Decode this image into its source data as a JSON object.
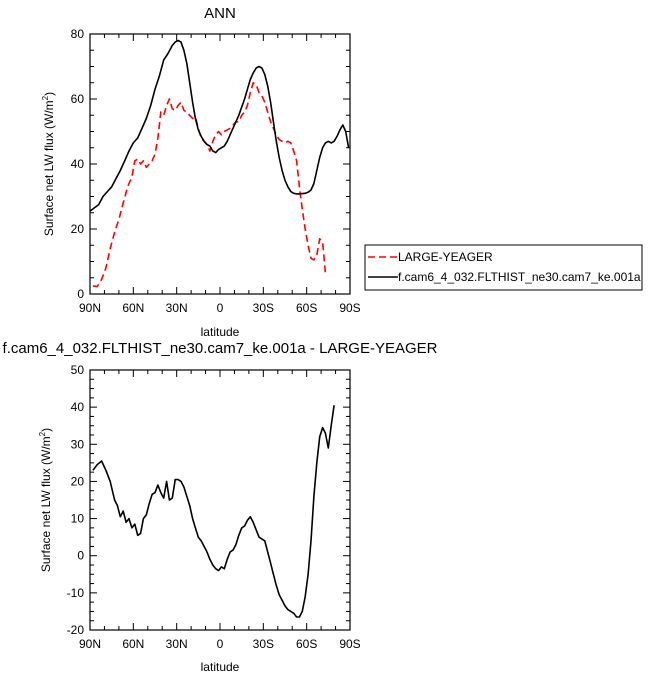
{
  "chart_data": [
    {
      "type": "line",
      "title": "ANN",
      "xlabel": "latitude",
      "ylabel_main": "Surface net LW flux (W/m",
      "ylabel_sup": "2",
      "ylabel_close": ")",
      "xlim": [
        90,
        -90
      ],
      "ylim": [
        0,
        80
      ],
      "xticks": [
        {
          "value": 90,
          "label": "90N"
        },
        {
          "value": 60,
          "label": "60N"
        },
        {
          "value": 30,
          "label": "30N"
        },
        {
          "value": 0,
          "label": "0"
        },
        {
          "value": -30,
          "label": "30S"
        },
        {
          "value": -60,
          "label": "60S"
        },
        {
          "value": -90,
          "label": "90S"
        }
      ],
      "yticks": [
        0,
        20,
        40,
        60,
        80
      ],
      "legend_position": "right",
      "series": [
        {
          "name": "LARGE-YEAGER",
          "color": "#ff0000",
          "dash": "dashed",
          "x": [
            88,
            85,
            82,
            79,
            76,
            73,
            70,
            67,
            64,
            61,
            59,
            57,
            55,
            53,
            51,
            49,
            47,
            45,
            43,
            41,
            39,
            37,
            35,
            33,
            31,
            29,
            27,
            25,
            23,
            21,
            19,
            17,
            15,
            13,
            11,
            9,
            7,
            5,
            3,
            1,
            -1,
            -3,
            -5,
            -7,
            -9,
            -11,
            -13,
            -15,
            -17,
            -19,
            -21,
            -23,
            -25,
            -27,
            -29,
            -31,
            -33,
            -35,
            -37,
            -39,
            -41,
            -43,
            -45,
            -47,
            -49,
            -51,
            -53,
            -55,
            -57,
            -59,
            -61,
            -63,
            -65,
            -67,
            -69,
            -71,
            -73,
            -75,
            -77,
            -79,
            -81
          ],
          "y": [
            2.5,
            2.3,
            4.5,
            8,
            14,
            19,
            23,
            28,
            33,
            36,
            41,
            41.5,
            40,
            41,
            39,
            40,
            41,
            43,
            48,
            56,
            55,
            58,
            60,
            57,
            56.5,
            58,
            59,
            56.5,
            56,
            55,
            54,
            54.5,
            51,
            48,
            47,
            46,
            44,
            47,
            49,
            50,
            49,
            50,
            50.5,
            51,
            52,
            53,
            53,
            55,
            56,
            58,
            62,
            65,
            64.5,
            62,
            61,
            59,
            56,
            53,
            51,
            49,
            47.5,
            47,
            46.5,
            47,
            46.5,
            44,
            41,
            33,
            26,
            20,
            15,
            11,
            10.5,
            12,
            17,
            16,
            6.5,
            null,
            null,
            null,
            null
          ]
        },
        {
          "name": "f.cam6_4_032.FLTHIST_ne30.cam7_ke.001a",
          "color": "#000000",
          "dash": "solid",
          "x": [
            90,
            87,
            84,
            81,
            78,
            75,
            72,
            69,
            66,
            63,
            60,
            57,
            54,
            51,
            48,
            45,
            42,
            39,
            36,
            33,
            31,
            29,
            27,
            25,
            23,
            21,
            19,
            17,
            15,
            13,
            11,
            9,
            7,
            5,
            3,
            1,
            -1,
            -3,
            -5,
            -7,
            -9,
            -11,
            -13,
            -15,
            -17,
            -19,
            -21,
            -23,
            -25,
            -27,
            -29,
            -31,
            -33,
            -35,
            -37,
            -39,
            -41,
            -43,
            -45,
            -47,
            -49,
            -51,
            -53,
            -55,
            -57,
            -59,
            -61,
            -63,
            -65,
            -67,
            -69,
            -71,
            -73,
            -75,
            -77,
            -79,
            -81,
            -83,
            -85,
            -87,
            -89
          ],
          "y": [
            25.5,
            26.5,
            27.5,
            30,
            31.5,
            33,
            35.5,
            38,
            41,
            44,
            46.5,
            48,
            51,
            54,
            58,
            63,
            67,
            72,
            74,
            76.5,
            77.5,
            78,
            77.5,
            75,
            71,
            65,
            59,
            54,
            50.5,
            48.5,
            47,
            46,
            45.5,
            44,
            43.5,
            44.5,
            45,
            45.5,
            47,
            49,
            51,
            53,
            55,
            57.5,
            60,
            63,
            66,
            68,
            69.5,
            70,
            69.5,
            67.5,
            64,
            59,
            53,
            47,
            42,
            38,
            35,
            33,
            31.5,
            31,
            30.8,
            30.8,
            30.9,
            31,
            31.3,
            32,
            34,
            38,
            42,
            45,
            46.5,
            47,
            46.5,
            47,
            48.5,
            50.5,
            52,
            50,
            45
          ]
        }
      ]
    },
    {
      "type": "line",
      "title": "f.cam6_4_032.FLTHIST_ne30.cam7_ke.001a - LARGE-YEAGER",
      "xlabel": "latitude",
      "ylabel_main": "Surface net LW flux (W/m",
      "ylabel_sup": "2",
      "ylabel_close": ")",
      "xlim": [
        90,
        -90
      ],
      "ylim": [
        -20,
        50
      ],
      "xticks": [
        {
          "value": 90,
          "label": "90N"
        },
        {
          "value": 60,
          "label": "60N"
        },
        {
          "value": 30,
          "label": "30N"
        },
        {
          "value": 0,
          "label": "0"
        },
        {
          "value": -30,
          "label": "30S"
        },
        {
          "value": -60,
          "label": "60S"
        },
        {
          "value": -90,
          "label": "90S"
        }
      ],
      "yticks": [
        -20,
        -10,
        0,
        10,
        20,
        30,
        40,
        50
      ],
      "series": [
        {
          "color": "#000000",
          "dash": "solid",
          "x": [
            88,
            85,
            82,
            79,
            76,
            73,
            71,
            69,
            67,
            65,
            63,
            61,
            59,
            57,
            55,
            53,
            51,
            49,
            47,
            45,
            43,
            41,
            39,
            37,
            35,
            33,
            31,
            29,
            27,
            25,
            23,
            21,
            19,
            17,
            15,
            13,
            11,
            9,
            7,
            5,
            3,
            1,
            -1,
            -3,
            -5,
            -7,
            -9,
            -11,
            -13,
            -15,
            -17,
            -19,
            -21,
            -23,
            -25,
            -27,
            -29,
            -31,
            -33,
            -35,
            -37,
            -39,
            -41,
            -43,
            -45,
            -47,
            -49,
            -51,
            -53,
            -55,
            -57,
            -59,
            -61,
            -63,
            -65,
            -67,
            -69,
            -71,
            -73,
            -75,
            -77,
            -79,
            -81
          ],
          "y": [
            23,
            24.5,
            25.5,
            23,
            20,
            15,
            13.5,
            10.5,
            12,
            9,
            10,
            7.5,
            8.5,
            5.5,
            6,
            10,
            11,
            14,
            16.5,
            17,
            19,
            17,
            15.5,
            20,
            15,
            15.5,
            20.5,
            20.5,
            20,
            18.5,
            16,
            13.5,
            10,
            7.5,
            5,
            4,
            2.5,
            1,
            -1,
            -2.5,
            -3.5,
            -4,
            -3,
            -3.5,
            -1,
            1,
            1.5,
            3,
            5.5,
            7.5,
            8,
            9.5,
            10.5,
            9,
            7,
            5,
            4.5,
            4,
            1,
            -2,
            -5,
            -8,
            -10.5,
            -12,
            -13.5,
            -14.5,
            -15,
            -15.5,
            -16.5,
            -16.5,
            -15,
            -11,
            -5,
            4,
            16,
            25,
            32,
            34.5,
            33,
            29,
            35,
            40.5,
            null
          ]
        }
      ]
    }
  ]
}
